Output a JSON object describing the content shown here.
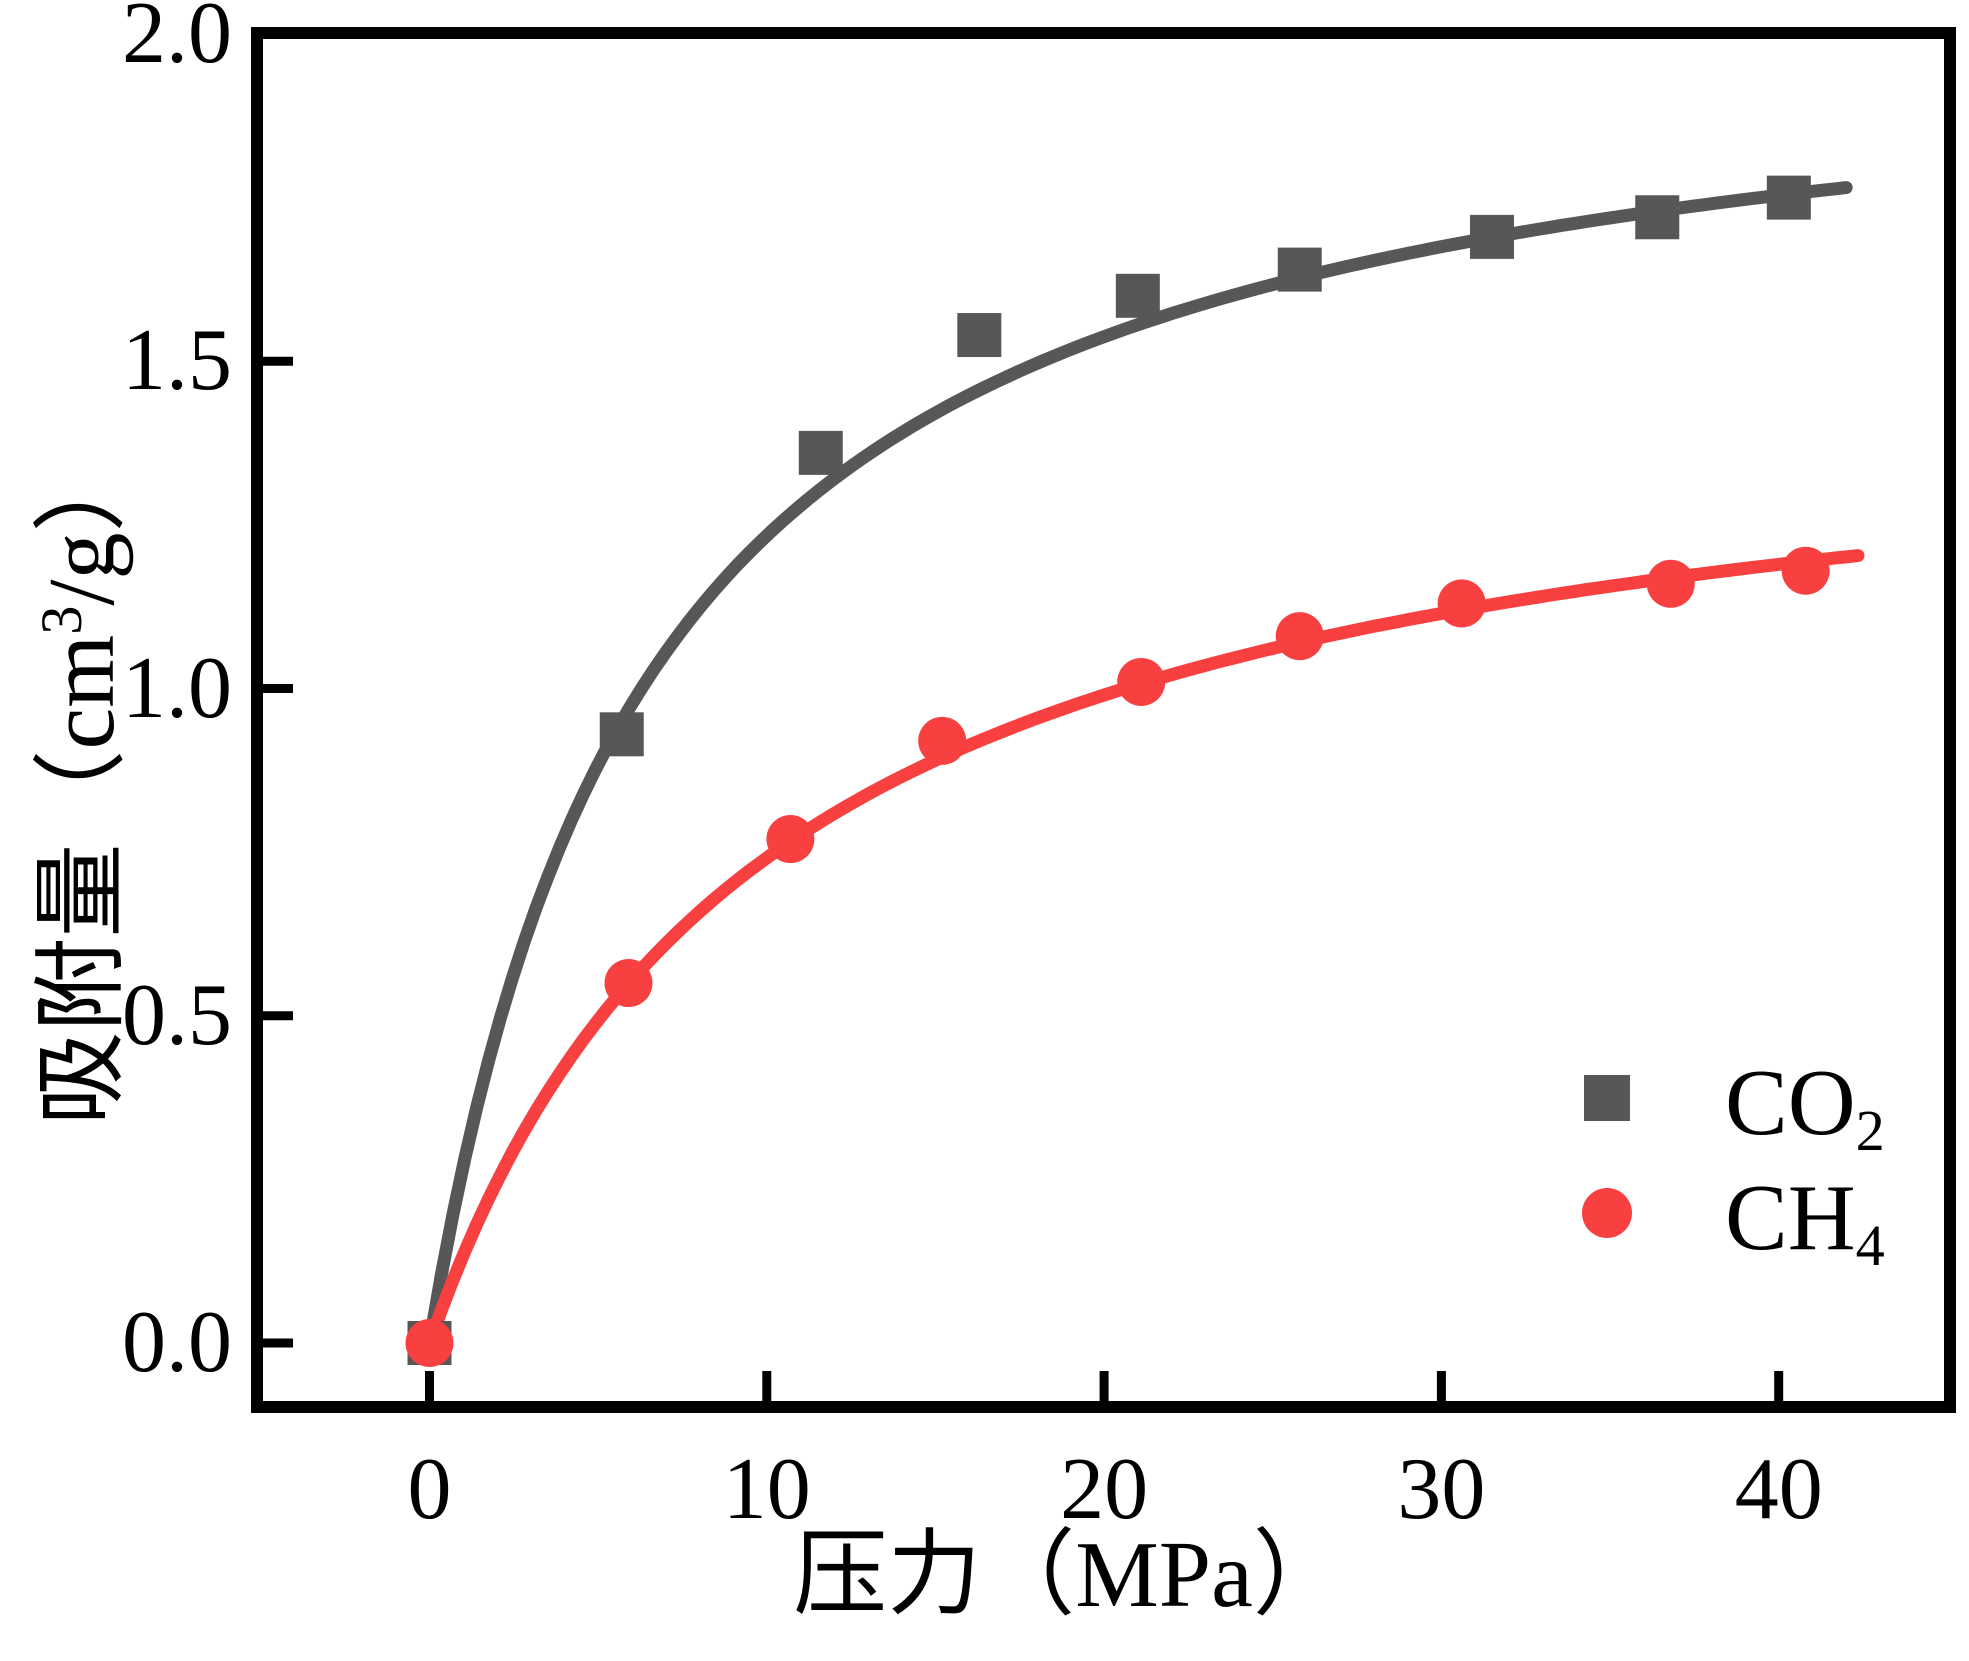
{
  "figure": {
    "background": "#ffffff",
    "frame_color": "#000000",
    "tick_color": "#000000"
  },
  "axes": {
    "x": {
      "title": "压力（MPa）",
      "tick_labels": [
        "0",
        "10",
        "20",
        "30",
        "40"
      ],
      "tick_values": [
        0,
        10,
        20,
        30,
        40
      ]
    },
    "y": {
      "title_pre": "吸附量（cm",
      "title_sup": "3",
      "title_post": "/g）",
      "tick_labels": [
        "0.0",
        "0.5",
        "1.0",
        "1.5",
        "2.0"
      ],
      "tick_values": [
        0,
        0.5,
        1.0,
        1.5,
        2.0
      ]
    }
  },
  "legend": {
    "items": [
      {
        "label_main": "CO",
        "label_sub": "2",
        "marker": "square",
        "color": "#575757"
      },
      {
        "label_main": "CH",
        "label_sub": "4",
        "marker": "circle",
        "color": "#f84040"
      }
    ]
  },
  "chart_data": {
    "type": "scatter",
    "title": "",
    "xlabel": "压力（MPa）",
    "ylabel": "吸附量（cm³/g）",
    "xlim": [
      -5.1,
      45.1
    ],
    "ylim": [
      -0.1,
      2.0
    ],
    "x_ticks": [
      0,
      10,
      20,
      30,
      40
    ],
    "y_ticks": [
      0.0,
      0.5,
      1.0,
      1.5,
      2.0
    ],
    "grid": false,
    "legend_position": "lower right",
    "series": [
      {
        "name": "CO2",
        "marker": "square",
        "color": "#575757",
        "x": [
          0,
          5.7,
          11.6,
          16.3,
          21.0,
          25.8,
          31.5,
          36.4,
          40.3
        ],
        "y": [
          0,
          0.93,
          1.36,
          1.54,
          1.6,
          1.64,
          1.69,
          1.72,
          1.75
        ],
        "fit": {
          "model": "langmuir",
          "Vm": 2.04,
          "b": 0.153,
          "p_end": 42.3
        }
      },
      {
        "name": "CH4",
        "marker": "circle",
        "color": "#f84040",
        "x": [
          0,
          5.9,
          10.7,
          15.2,
          21.1,
          25.8,
          30.6,
          36.8,
          40.8
        ],
        "y": [
          0,
          0.55,
          0.77,
          0.92,
          1.01,
          1.08,
          1.13,
          1.16,
          1.18
        ],
        "fit": {
          "model": "langmuir",
          "Vm": 1.49,
          "b": 0.099,
          "p_end": 42.6
        }
      }
    ]
  }
}
